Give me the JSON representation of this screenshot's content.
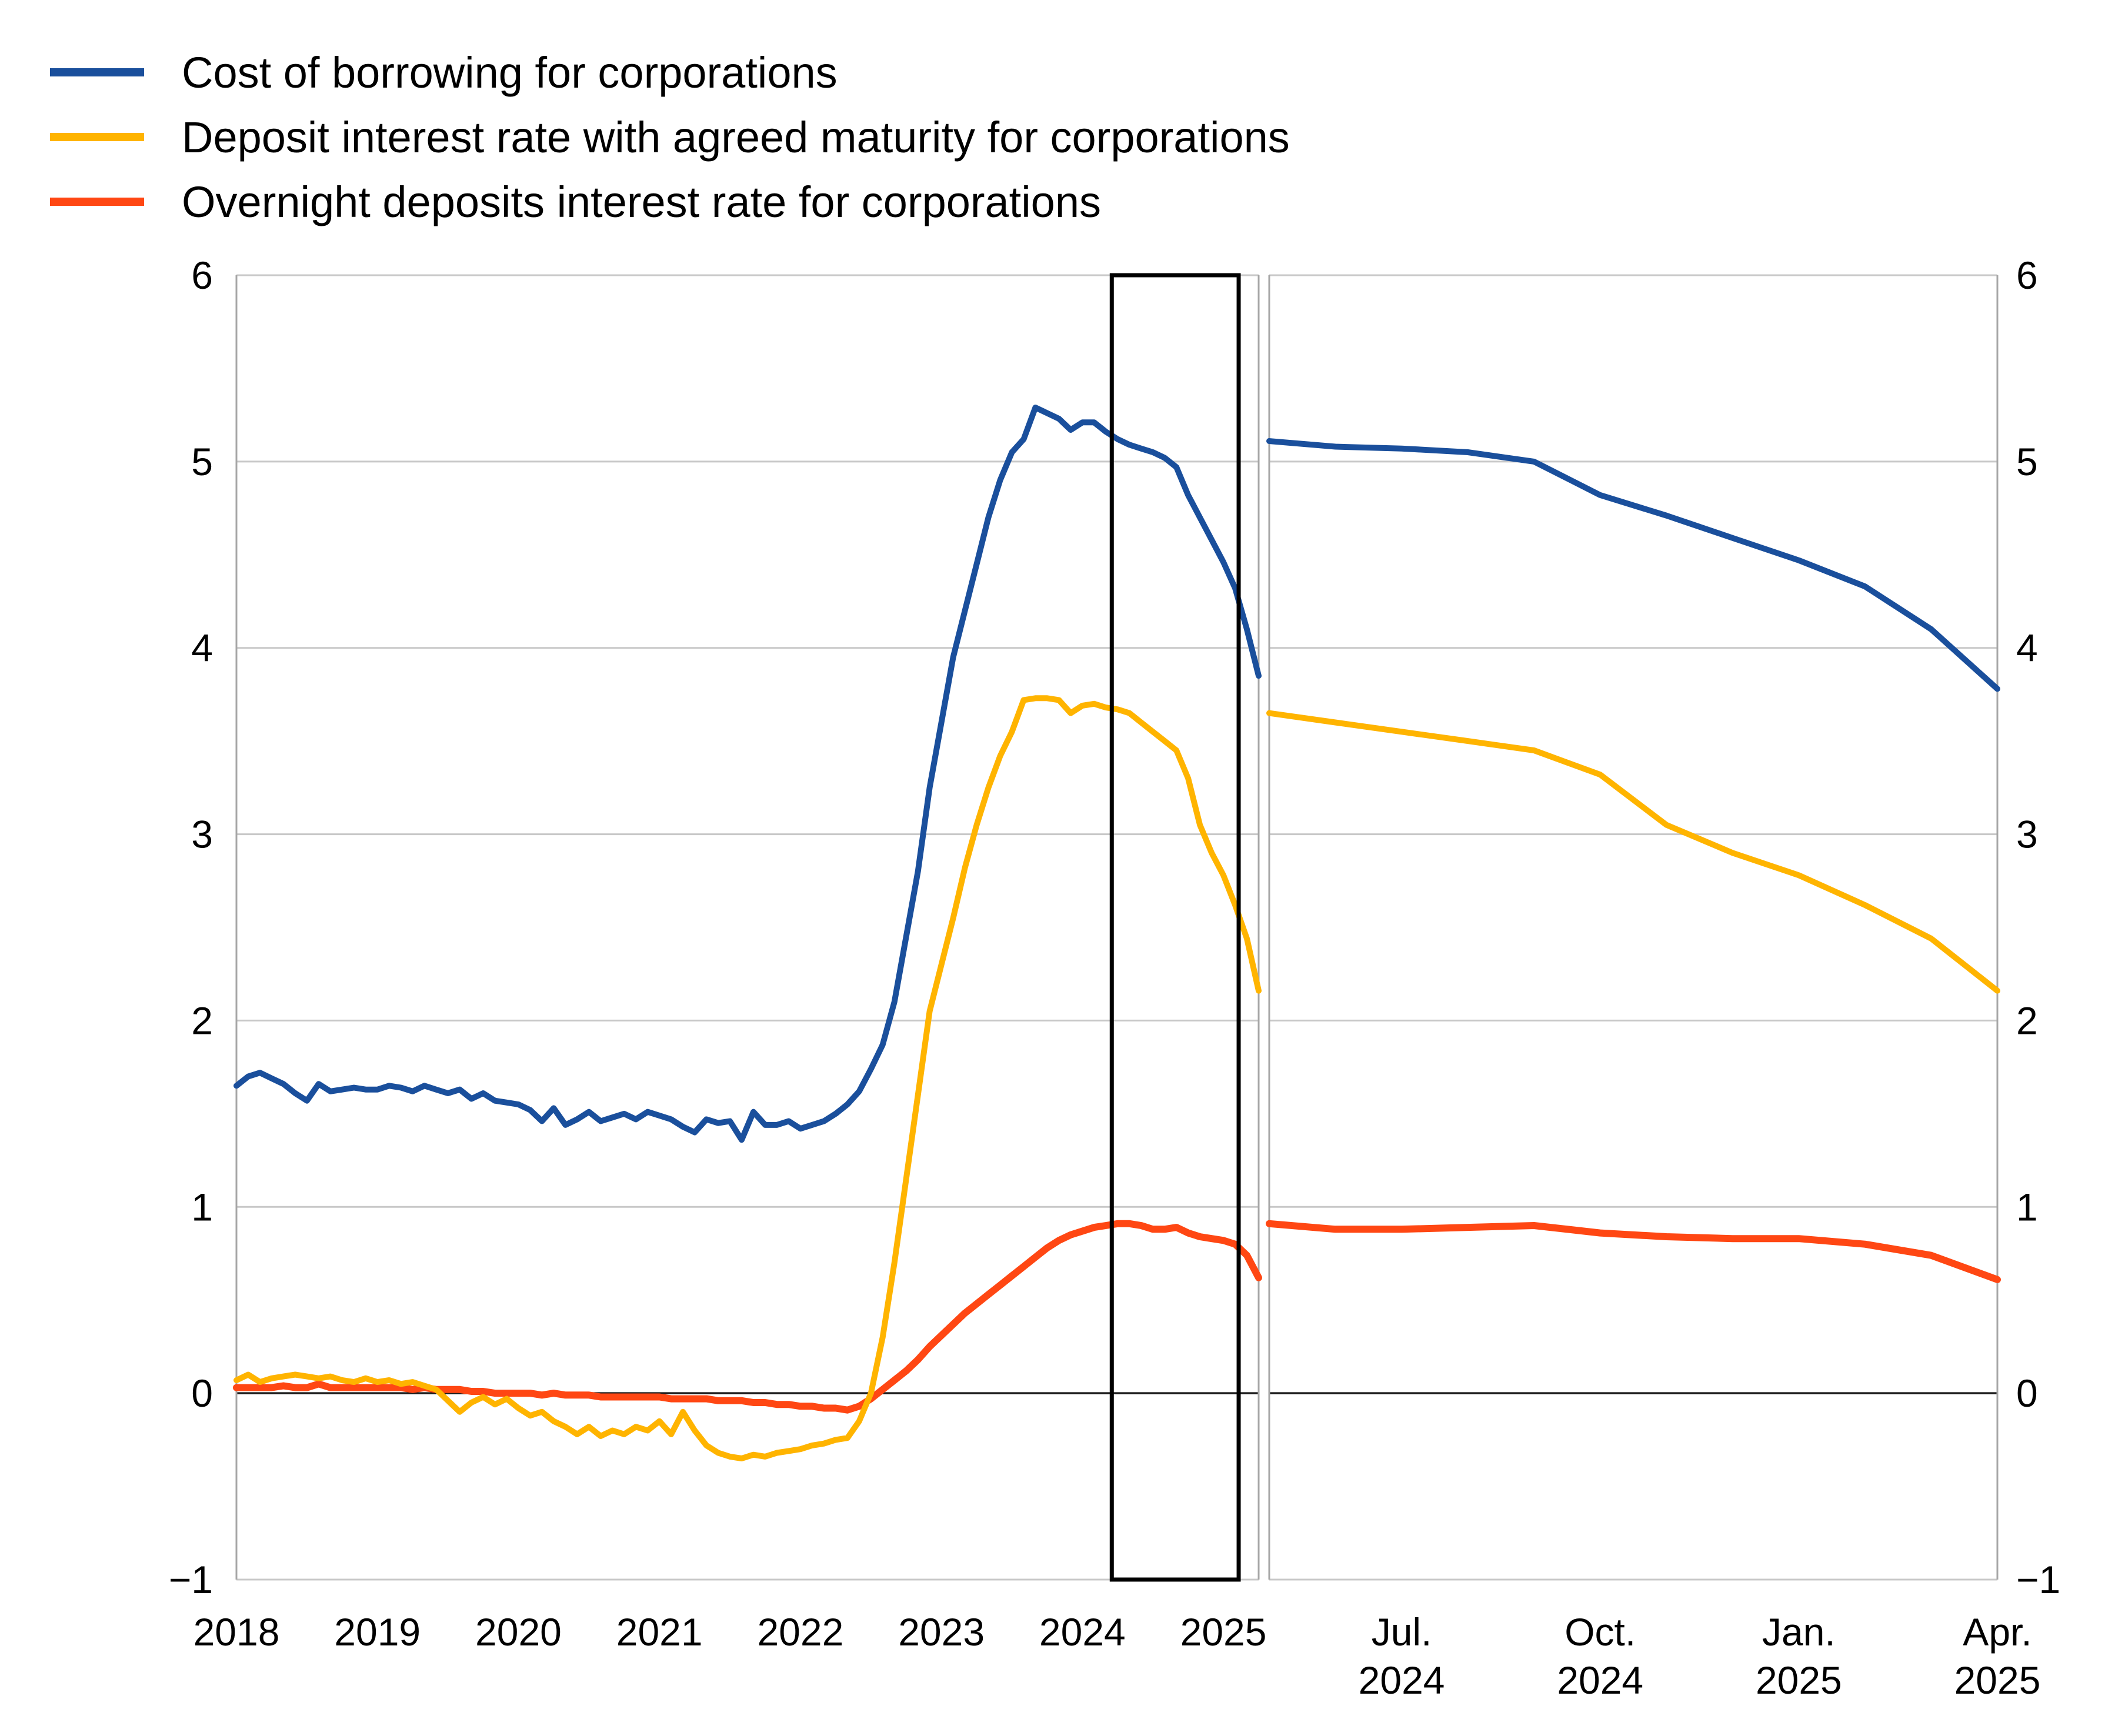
{
  "legend": {
    "items": [
      {
        "label": "Cost of borrowing for corporations",
        "color": "#1a4f9c"
      },
      {
        "label": "Deposit interest rate with agreed maturity for corporations",
        "color": "#ffb400"
      },
      {
        "label": "Overnight deposits interest rate for corporations",
        "color": "#ff4713"
      }
    ]
  },
  "colors": {
    "blue": "#1a4f9c",
    "yellow": "#ffb400",
    "red": "#ff4713",
    "gridline": "#c8c8c8",
    "frame": "#a6a6a6",
    "zero_line": "#1a1a1a",
    "highlight_box": "#000000"
  },
  "chart_data": [
    {
      "type": "line",
      "panel": "left",
      "title": "",
      "xlabel": "",
      "ylabel": "",
      "x_unit": "month",
      "x_start": "2018-01",
      "x_end": "2025-04",
      "ylim": [
        -1,
        6
      ],
      "grid": true,
      "y_ticks": [
        {
          "v": 6,
          "label": "6"
        },
        {
          "v": 5,
          "label": "5"
        },
        {
          "v": 4,
          "label": "4"
        },
        {
          "v": 3,
          "label": "3"
        },
        {
          "v": 2,
          "label": "2"
        },
        {
          "v": 1,
          "label": "1"
        },
        {
          "v": 0,
          "label": "0"
        },
        {
          "v": -1,
          "label": "−1"
        }
      ],
      "x_tick_labels": [
        {
          "m": 0,
          "label": "2018"
        },
        {
          "m": 12,
          "label": "2019"
        },
        {
          "m": 24,
          "label": "2020"
        },
        {
          "m": 36,
          "label": "2021"
        },
        {
          "m": 48,
          "label": "2022"
        },
        {
          "m": 60,
          "label": "2023"
        },
        {
          "m": 72,
          "label": "2024"
        },
        {
          "m": 84,
          "label": "2025"
        }
      ],
      "highlight_box": {
        "start_m": 74.5,
        "end_m": 85.3
      },
      "series": [
        {
          "name": "Cost of borrowing for corporations",
          "color": "#1a4f9c",
          "width": 10,
          "values": [
            1.65,
            1.7,
            1.72,
            1.69,
            1.66,
            1.61,
            1.57,
            1.66,
            1.62,
            1.63,
            1.64,
            1.63,
            1.63,
            1.65,
            1.64,
            1.62,
            1.65,
            1.63,
            1.61,
            1.63,
            1.58,
            1.61,
            1.57,
            1.56,
            1.55,
            1.52,
            1.46,
            1.53,
            1.44,
            1.47,
            1.51,
            1.46,
            1.48,
            1.5,
            1.47,
            1.51,
            1.49,
            1.47,
            1.43,
            1.4,
            1.47,
            1.45,
            1.46,
            1.36,
            1.51,
            1.44,
            1.44,
            1.46,
            1.42,
            1.44,
            1.46,
            1.5,
            1.55,
            1.62,
            1.74,
            1.87,
            2.1,
            2.45,
            2.8,
            3.25,
            3.6,
            3.95,
            4.2,
            4.45,
            4.7,
            4.9,
            5.05,
            5.12,
            5.29,
            5.26,
            5.23,
            5.17,
            5.21,
            5.21,
            5.16,
            5.12,
            5.09,
            5.07,
            5.05,
            5.02,
            4.97,
            4.82,
            4.7,
            4.58,
            4.46,
            4.32,
            4.1,
            3.85
          ]
        },
        {
          "name": "Overnight deposits interest rate for corporations",
          "color": "#ff4713",
          "width": 12,
          "values": [
            0.03,
            0.03,
            0.03,
            0.03,
            0.04,
            0.03,
            0.03,
            0.05,
            0.03,
            0.03,
            0.03,
            0.03,
            0.03,
            0.03,
            0.03,
            0.02,
            0.03,
            0.02,
            0.02,
            0.02,
            0.01,
            0.01,
            0.0,
            0.0,
            0.0,
            0.0,
            -0.01,
            0.0,
            -0.01,
            -0.01,
            -0.01,
            -0.02,
            -0.02,
            -0.02,
            -0.02,
            -0.02,
            -0.02,
            -0.03,
            -0.03,
            -0.03,
            -0.03,
            -0.04,
            -0.04,
            -0.04,
            -0.05,
            -0.05,
            -0.06,
            -0.06,
            -0.07,
            -0.07,
            -0.08,
            -0.08,
            -0.09,
            -0.07,
            -0.03,
            0.02,
            0.07,
            0.12,
            0.18,
            0.25,
            0.31,
            0.37,
            0.43,
            0.48,
            0.53,
            0.58,
            0.63,
            0.68,
            0.73,
            0.78,
            0.82,
            0.85,
            0.87,
            0.89,
            0.9,
            0.91,
            0.91,
            0.9,
            0.88,
            0.88,
            0.89,
            0.86,
            0.84,
            0.83,
            0.82,
            0.8,
            0.74,
            0.62
          ]
        },
        {
          "name": "Deposit interest rate with agreed maturity for corporations",
          "color": "#ffb400",
          "width": 10,
          "values": [
            0.07,
            0.1,
            0.06,
            0.08,
            0.09,
            0.1,
            0.09,
            0.08,
            0.09,
            0.07,
            0.06,
            0.08,
            0.06,
            0.07,
            0.05,
            0.06,
            0.04,
            0.02,
            -0.04,
            -0.1,
            -0.05,
            -0.02,
            -0.06,
            -0.03,
            -0.08,
            -0.12,
            -0.1,
            -0.15,
            -0.18,
            -0.22,
            -0.18,
            -0.23,
            -0.2,
            -0.22,
            -0.18,
            -0.2,
            -0.15,
            -0.22,
            -0.1,
            -0.2,
            -0.28,
            -0.32,
            -0.34,
            -0.35,
            -0.33,
            -0.34,
            -0.32,
            -0.31,
            -0.3,
            -0.28,
            -0.27,
            -0.25,
            -0.24,
            -0.15,
            0.0,
            0.3,
            0.7,
            1.15,
            1.6,
            2.05,
            2.3,
            2.55,
            2.82,
            3.05,
            3.25,
            3.42,
            3.55,
            3.72,
            3.73,
            3.73,
            3.72,
            3.65,
            3.69,
            3.7,
            3.68,
            3.67,
            3.65,
            3.6,
            3.55,
            3.5,
            3.45,
            3.3,
            3.05,
            2.9,
            2.78,
            2.62,
            2.44,
            2.16
          ]
        }
      ]
    },
    {
      "type": "line",
      "panel": "right",
      "title": "",
      "xlabel": "",
      "ylabel": "",
      "x_unit": "month",
      "x_start": "2024-05",
      "x_end": "2025-04",
      "ylim": [
        -1,
        6
      ],
      "grid": true,
      "y_ticks": [
        {
          "v": 6,
          "label": "6"
        },
        {
          "v": 5,
          "label": "5"
        },
        {
          "v": 4,
          "label": "4"
        },
        {
          "v": 3,
          "label": "3"
        },
        {
          "v": 2,
          "label": "2"
        },
        {
          "v": 1,
          "label": "1"
        },
        {
          "v": 0,
          "label": "0"
        },
        {
          "v": -1,
          "label": "−1"
        }
      ],
      "x_tick_labels": [
        {
          "m": 2,
          "label": "Jul.\n2024"
        },
        {
          "m": 5,
          "label": "Oct.\n2024"
        },
        {
          "m": 8,
          "label": "Jan.\n2025"
        },
        {
          "m": 11,
          "label": "Apr.\n2025"
        }
      ],
      "series": [
        {
          "name": "Cost of borrowing for corporations",
          "color": "#1a4f9c",
          "width": 10,
          "values": [
            5.11,
            5.08,
            5.07,
            5.05,
            5.0,
            4.82,
            4.71,
            4.59,
            4.47,
            4.33,
            4.1,
            3.78
          ]
        },
        {
          "name": "Overnight deposits interest rate for corporations",
          "color": "#ff4713",
          "width": 12,
          "values": [
            0.91,
            0.88,
            0.88,
            0.89,
            0.9,
            0.86,
            0.84,
            0.83,
            0.83,
            0.8,
            0.74,
            0.61
          ]
        },
        {
          "name": "Deposit interest rate with agreed maturity for corporations",
          "color": "#ffb400",
          "width": 10,
          "values": [
            3.65,
            3.6,
            3.55,
            3.5,
            3.45,
            3.32,
            3.05,
            2.9,
            2.78,
            2.62,
            2.44,
            2.16
          ]
        }
      ]
    }
  ]
}
